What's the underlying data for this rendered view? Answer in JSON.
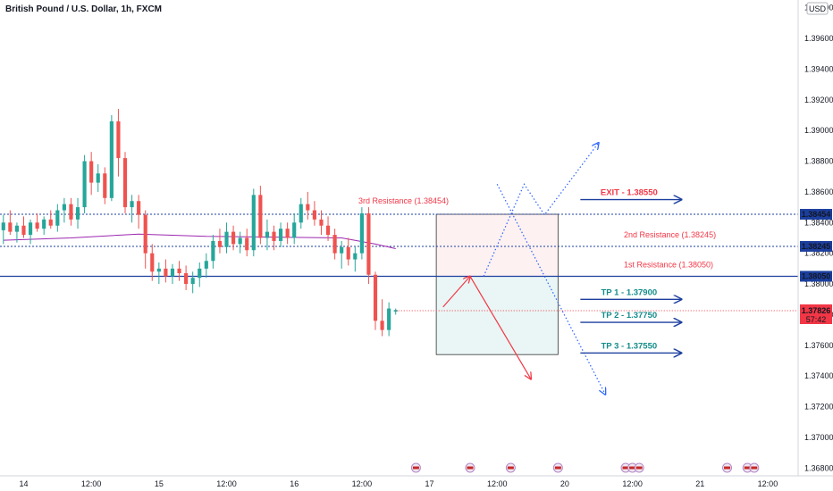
{
  "chart_data": {
    "type": "candlestick",
    "title": "British Pound / U.S. Dollar, 1h, FXCM",
    "currency_label": "USD",
    "ylim": [
      1.3675,
      1.3985
    ],
    "y_ticks": [
      1.368,
      1.37,
      1.372,
      1.374,
      1.376,
      1.378,
      1.38,
      1.382,
      1.384,
      1.386,
      1.388,
      1.39,
      1.392,
      1.394,
      1.396,
      1.398
    ],
    "x_ticks": [
      {
        "i": 3,
        "label": "14"
      },
      {
        "i": 13,
        "label": "12:00"
      },
      {
        "i": 23,
        "label": "15"
      },
      {
        "i": 33,
        "label": "12:00"
      },
      {
        "i": 43,
        "label": "16"
      },
      {
        "i": 53,
        "label": "12:00"
      },
      {
        "i": 63,
        "label": "17"
      },
      {
        "i": 73,
        "label": "12:00"
      },
      {
        "i": 83,
        "label": "20"
      },
      {
        "i": 93,
        "label": "12:00"
      },
      {
        "i": 103,
        "label": "21"
      },
      {
        "i": 113,
        "label": "12:00"
      }
    ],
    "x_range": [
      -0.5,
      117.5
    ],
    "candles": [
      [
        1.3835,
        1.3845,
        1.3826,
        1.384
      ],
      [
        1.384,
        1.3848,
        1.3832,
        1.3834
      ],
      [
        1.3834,
        1.384,
        1.3827,
        1.3838
      ],
      [
        1.3838,
        1.3844,
        1.383,
        1.3832
      ],
      [
        1.3832,
        1.3842,
        1.3826,
        1.384
      ],
      [
        1.384,
        1.3846,
        1.3834,
        1.3836
      ],
      [
        1.3836,
        1.3844,
        1.3832,
        1.3842
      ],
      [
        1.3842,
        1.3848,
        1.3836,
        1.3838
      ],
      [
        1.3838,
        1.3852,
        1.3834,
        1.3848
      ],
      [
        1.3848,
        1.3856,
        1.384,
        1.3852
      ],
      [
        1.3852,
        1.3856,
        1.3838,
        1.3842
      ],
      [
        1.3842,
        1.3856,
        1.3836,
        1.385
      ],
      [
        1.385,
        1.3884,
        1.3846,
        1.388
      ],
      [
        1.388,
        1.3886,
        1.3858,
        1.3866
      ],
      [
        1.3866,
        1.3878,
        1.386,
        1.3872
      ],
      [
        1.3872,
        1.3876,
        1.3852,
        1.3856
      ],
      [
        1.3856,
        1.391,
        1.3854,
        1.3906
      ],
      [
        1.3906,
        1.3914,
        1.387,
        1.3882
      ],
      [
        1.3882,
        1.3886,
        1.3846,
        1.385
      ],
      [
        1.385,
        1.3858,
        1.384,
        1.3854
      ],
      [
        1.3854,
        1.3858,
        1.3836,
        1.3845
      ],
      [
        1.3845,
        1.3848,
        1.381,
        1.382
      ],
      [
        1.382,
        1.3826,
        1.3802,
        1.3808
      ],
      [
        1.3808,
        1.3814,
        1.38,
        1.381
      ],
      [
        1.381,
        1.3816,
        1.3801,
        1.3805
      ],
      [
        1.3805,
        1.3813,
        1.38,
        1.381
      ],
      [
        1.381,
        1.3815,
        1.3802,
        1.3807
      ],
      [
        1.3807,
        1.3812,
        1.3796,
        1.38
      ],
      [
        1.38,
        1.3808,
        1.3794,
        1.3804
      ],
      [
        1.3804,
        1.3814,
        1.3798,
        1.381
      ],
      [
        1.381,
        1.382,
        1.3804,
        1.3815
      ],
      [
        1.3815,
        1.3832,
        1.381,
        1.3828
      ],
      [
        1.3828,
        1.3836,
        1.382,
        1.3824
      ],
      [
        1.3824,
        1.384,
        1.382,
        1.3834
      ],
      [
        1.3834,
        1.3838,
        1.3822,
        1.3826
      ],
      [
        1.3826,
        1.3834,
        1.382,
        1.383
      ],
      [
        1.383,
        1.3836,
        1.3818,
        1.3822
      ],
      [
        1.3822,
        1.3862,
        1.3818,
        1.3858
      ],
      [
        1.3858,
        1.3864,
        1.3826,
        1.383
      ],
      [
        1.383,
        1.3842,
        1.3822,
        1.3834
      ],
      [
        1.3834,
        1.3838,
        1.3822,
        1.3828
      ],
      [
        1.3828,
        1.384,
        1.3824,
        1.3836
      ],
      [
        1.3836,
        1.384,
        1.3826,
        1.383
      ],
      [
        1.383,
        1.3846,
        1.3826,
        1.384
      ],
      [
        1.384,
        1.3856,
        1.3836,
        1.3852
      ],
      [
        1.3852,
        1.386,
        1.3842,
        1.3848
      ],
      [
        1.3848,
        1.3854,
        1.3838,
        1.3842
      ],
      [
        1.3842,
        1.3848,
        1.3832,
        1.3838
      ],
      [
        1.3838,
        1.3844,
        1.3828,
        1.3832
      ],
      [
        1.3832,
        1.3836,
        1.3816,
        1.382
      ],
      [
        1.382,
        1.3828,
        1.381,
        1.3824
      ],
      [
        1.3824,
        1.383,
        1.3812,
        1.3816
      ],
      [
        1.3816,
        1.3824,
        1.3808,
        1.382
      ],
      [
        1.382,
        1.385,
        1.3816,
        1.3846
      ],
      [
        1.3846,
        1.385,
        1.38,
        1.3806
      ],
      [
        1.3806,
        1.3808,
        1.377,
        1.3776
      ],
      [
        1.3776,
        1.379,
        1.3766,
        1.377
      ],
      [
        1.377,
        1.3788,
        1.3766,
        1.3784
      ],
      [
        1.3782,
        1.3784,
        1.378,
        1.3783
      ]
    ],
    "moving_average": [
      [
        0,
        1.38285
      ],
      [
        10,
        1.383
      ],
      [
        20,
        1.38325
      ],
      [
        30,
        1.3831
      ],
      [
        40,
        1.38305
      ],
      [
        50,
        1.383
      ],
      [
        55,
        1.3826
      ],
      [
        58,
        1.3823
      ]
    ],
    "levels": [
      {
        "name": "3rd Resistance (1.38454)",
        "price": 1.38454,
        "price_label": "1.38454",
        "style": "dotted",
        "color": "#1c3f9e"
      },
      {
        "name": "2nd Resistance (1.38245)",
        "price": 1.38245,
        "price_label": "1.38245",
        "style": "dotted",
        "color": "#1c3f9e"
      },
      {
        "name": "1st Resistance (1.38050)",
        "price": 1.3805,
        "price_label": "1.38050",
        "style": "solid",
        "color": "#1c3f9e"
      }
    ],
    "current_price": {
      "price": 1.37826,
      "price_label": "1.37826",
      "countdown": "57:42",
      "color": "#f23645"
    },
    "zone_start": 64,
    "zone_end": 82,
    "zone_top": 1.38454,
    "zone_bottom": 1.3754,
    "targets": [
      {
        "label": "EXIT - 1.38550",
        "price": 1.3855,
        "color": "#f23645"
      },
      {
        "label": "TP 1 - 1.37900",
        "price": 1.379,
        "color": "#138b8b"
      },
      {
        "label": "TP 2 - 1.37750",
        "price": 1.3775,
        "color": "#138b8b"
      },
      {
        "label": "TP 3 - 1.37550",
        "price": 1.3755,
        "color": "#138b8b"
      }
    ],
    "bullish_path": [
      [
        71,
        1.3805
      ],
      [
        77,
        1.3865
      ],
      [
        80,
        1.3845
      ],
      [
        88,
        1.3892
      ]
    ],
    "bearish_path": [
      [
        73,
        1.3865
      ],
      [
        89,
        1.3728
      ]
    ],
    "red_path": [
      [
        65,
        1.3785
      ],
      [
        69,
        1.3805
      ],
      [
        78,
        1.3738
      ]
    ],
    "event_flags": [
      61,
      69,
      75,
      82,
      92,
      93,
      94,
      107,
      110,
      111
    ]
  },
  "colors": {
    "bull": "#26a69a",
    "bear": "#ef5350",
    "level": "#1c3f9e",
    "ma": "#9c27b0"
  }
}
